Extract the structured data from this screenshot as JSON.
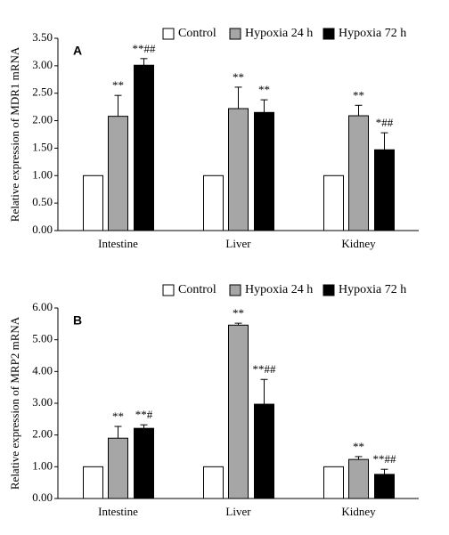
{
  "chart_data": [
    {
      "type": "bar",
      "panel_label": "A",
      "ylabel": "Relative expression of MDR1 mRNA",
      "categories": [
        "Intestine",
        "Liver",
        "Kidney"
      ],
      "series": [
        {
          "name": "Control",
          "color": "#ffffff",
          "values": [
            1.0,
            1.0,
            1.0
          ]
        },
        {
          "name": "Hypoxia 24 h",
          "color": "#a6a6a6",
          "values": [
            2.08,
            2.22,
            2.09
          ],
          "errors": [
            0.38,
            0.39,
            0.19
          ],
          "annotations": [
            "**",
            "**",
            "**"
          ]
        },
        {
          "name": "Hypoxia 72 h",
          "color": "#000000",
          "values": [
            3.01,
            2.15,
            1.47
          ],
          "errors": [
            0.12,
            0.23,
            0.31
          ],
          "annotations": [
            "**##",
            "**",
            "*##"
          ]
        }
      ],
      "ylim": [
        0,
        3.5
      ],
      "yticks": [
        {
          "value": 0,
          "label": "0.00"
        },
        {
          "value": 0.5,
          "label": "0.50"
        },
        {
          "value": 1,
          "label": "1.00"
        },
        {
          "value": 1.5,
          "label": "1.50"
        },
        {
          "value": 2,
          "label": "2.00"
        },
        {
          "value": 2.5,
          "label": "2.50"
        },
        {
          "value": 3,
          "label": "3.00"
        },
        {
          "value": 3.5,
          "label": "3.50"
        }
      ],
      "grid": false,
      "legend": "top-right"
    },
    {
      "type": "bar",
      "panel_label": "B",
      "ylabel": "Relative expression of MRP2 mRNA",
      "categories": [
        "Intestine",
        "Liver",
        "Kidney"
      ],
      "series": [
        {
          "name": "Control",
          "color": "#ffffff",
          "values": [
            1.0,
            1.0,
            1.0
          ]
        },
        {
          "name": "Hypoxia 24 h",
          "color": "#a6a6a6",
          "values": [
            1.9,
            5.46,
            1.23
          ],
          "errors": [
            0.37,
            0.06,
            0.09
          ],
          "annotations": [
            "**",
            "**",
            "**"
          ]
        },
        {
          "name": "Hypoxia 72 h",
          "color": "#000000",
          "values": [
            2.21,
            2.97,
            0.76
          ],
          "errors": [
            0.11,
            0.78,
            0.16
          ],
          "annotations": [
            "**#",
            "**##",
            "**##"
          ]
        }
      ],
      "ylim": [
        0,
        6
      ],
      "yticks": [
        {
          "value": 0,
          "label": "0.00"
        },
        {
          "value": 1,
          "label": "1.00"
        },
        {
          "value": 2,
          "label": "2.00"
        },
        {
          "value": 3,
          "label": "3.00"
        },
        {
          "value": 4,
          "label": "4.00"
        },
        {
          "value": 5,
          "label": "5.00"
        },
        {
          "value": 6,
          "label": "6.00"
        }
      ],
      "grid": false,
      "legend": "top-right"
    }
  ]
}
